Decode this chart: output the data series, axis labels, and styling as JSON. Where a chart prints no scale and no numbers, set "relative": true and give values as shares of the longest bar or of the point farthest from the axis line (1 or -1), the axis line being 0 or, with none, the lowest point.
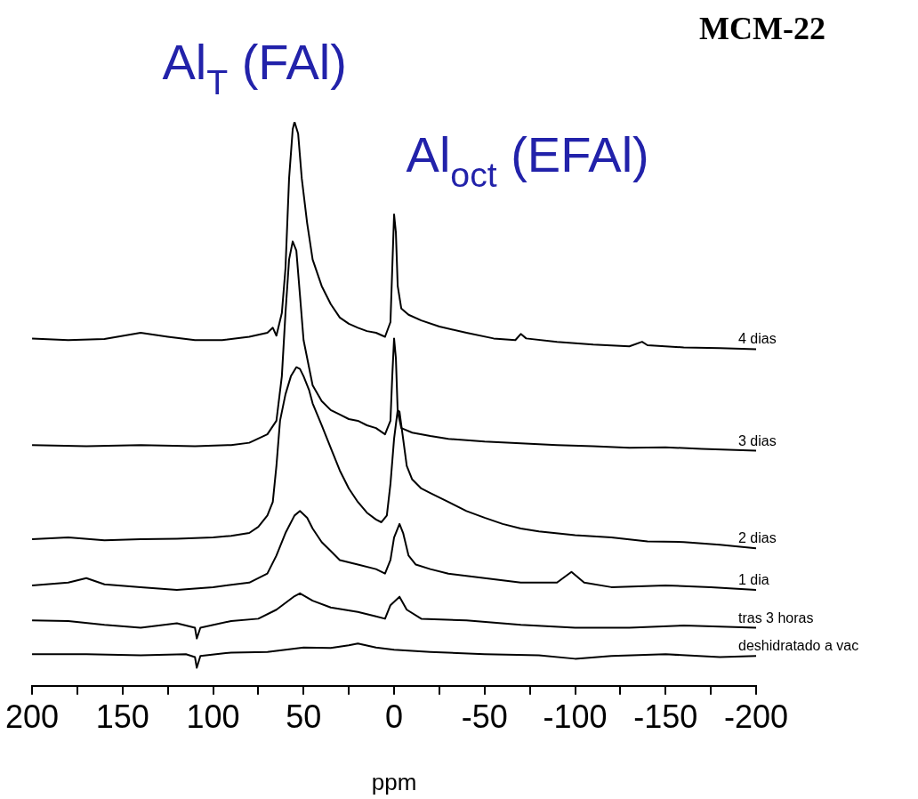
{
  "chart_data": {
    "type": "line",
    "title": "MCM-22",
    "xlabel": "ppm",
    "relative": true,
    "legend": false,
    "grid": false,
    "annotations": [
      {
        "text": "Al$_{T}$ (FAl)",
        "x": 55,
        "y": 1.0
      },
      {
        "text": "Al$_{oct}$ (EFAl)",
        "x": 0,
        "y": 0.836
      }
    ],
    "xlim": [
      200,
      -200
    ],
    "xticks": [
      200,
      {
        "value": 175,
        "label": null
      },
      150,
      {
        "value": 125,
        "label": null
      },
      100,
      {
        "value": 75,
        "label": null
      },
      50,
      {
        "value": 25,
        "label": null
      },
      0,
      {
        "value": -25,
        "label": null
      },
      -50,
      {
        "value": -75,
        "label": null
      },
      -100,
      {
        "value": -125,
        "label": null
      },
      -150,
      {
        "value": -175,
        "label": null
      },
      -200
    ],
    "series": [
      {
        "name": "4 dias",
        "color": "#000000",
        "x": [
          200,
          180,
          160,
          140,
          125,
          110,
          95,
          80,
          70,
          67,
          65,
          62,
          60,
          58,
          56,
          55,
          53,
          51,
          48,
          45,
          40,
          35,
          30,
          25,
          20,
          15,
          10,
          5,
          2,
          1,
          0,
          -1,
          -2,
          -4,
          -8,
          -15,
          -25,
          -40,
          -55,
          -67,
          -70,
          -73,
          -90,
          -110,
          -130,
          -137,
          -140,
          -160,
          -180,
          -200
        ],
        "values": [
          0.616,
          0.613,
          0.615,
          0.626,
          0.619,
          0.613,
          0.613,
          0.619,
          0.626,
          0.635,
          0.621,
          0.661,
          0.74,
          0.9,
          0.987,
          1.0,
          0.979,
          0.9,
          0.82,
          0.756,
          0.709,
          0.677,
          0.653,
          0.642,
          0.635,
          0.629,
          0.626,
          0.619,
          0.645,
          0.74,
          0.836,
          0.804,
          0.709,
          0.669,
          0.658,
          0.648,
          0.637,
          0.626,
          0.616,
          0.613,
          0.624,
          0.616,
          0.61,
          0.605,
          0.602,
          0.61,
          0.604,
          0.6,
          0.599,
          0.597
        ]
      },
      {
        "name": "3 dias",
        "color": "#000000",
        "x": [
          200,
          170,
          140,
          110,
          90,
          80,
          70,
          65,
          62,
          60,
          58,
          56,
          54,
          52,
          50,
          47,
          45,
          40,
          35,
          30,
          25,
          20,
          15,
          10,
          5,
          2,
          1,
          0,
          -1,
          -2,
          -4,
          -10,
          -20,
          -30,
          -50,
          -70,
          -90,
          -110,
          -130,
          -150,
          -170,
          -200
        ],
        "values": [
          0.427,
          0.425,
          0.427,
          0.425,
          0.427,
          0.431,
          0.446,
          0.47,
          0.549,
          0.661,
          0.756,
          0.788,
          0.772,
          0.693,
          0.613,
          0.565,
          0.533,
          0.505,
          0.489,
          0.481,
          0.473,
          0.47,
          0.462,
          0.457,
          0.446,
          0.47,
          0.549,
          0.616,
          0.581,
          0.486,
          0.457,
          0.449,
          0.443,
          0.438,
          0.433,
          0.43,
          0.427,
          0.425,
          0.422,
          0.423,
          0.42,
          0.417
        ]
      },
      {
        "name": "2 dias",
        "color": "#000000",
        "x": [
          200,
          180,
          160,
          140,
          120,
          100,
          90,
          80,
          75,
          70,
          67,
          65,
          63,
          60,
          57,
          54,
          52,
          50,
          47,
          45,
          40,
          35,
          30,
          25,
          20,
          15,
          10,
          7,
          4,
          2,
          0,
          -2,
          -3,
          -5,
          -7,
          -10,
          -15,
          -20,
          -30,
          -40,
          -50,
          -60,
          -70,
          -80,
          -100,
          -120,
          -140,
          -160,
          -180,
          -200
        ],
        "values": [
          0.26,
          0.263,
          0.258,
          0.26,
          0.261,
          0.263,
          0.266,
          0.271,
          0.282,
          0.302,
          0.326,
          0.39,
          0.47,
          0.517,
          0.549,
          0.565,
          0.562,
          0.549,
          0.525,
          0.501,
          0.462,
          0.422,
          0.382,
          0.35,
          0.326,
          0.307,
          0.295,
          0.29,
          0.302,
          0.358,
          0.438,
          0.489,
          0.486,
          0.438,
          0.39,
          0.366,
          0.35,
          0.342,
          0.326,
          0.31,
          0.298,
          0.287,
          0.279,
          0.274,
          0.267,
          0.263,
          0.256,
          0.255,
          0.25,
          0.244
        ]
      },
      {
        "name": "1 dia",
        "color": "#000000",
        "x": [
          200,
          180,
          170,
          160,
          140,
          120,
          100,
          80,
          70,
          65,
          60,
          55,
          52,
          48,
          45,
          40,
          35,
          30,
          20,
          10,
          5,
          2,
          0,
          -3,
          -5,
          -8,
          -12,
          -20,
          -30,
          -50,
          -70,
          -90,
          -98,
          -105,
          -120,
          -150,
          -175,
          -200
        ],
        "values": [
          0.178,
          0.183,
          0.191,
          0.18,
          0.175,
          0.17,
          0.175,
          0.183,
          0.199,
          0.231,
          0.271,
          0.302,
          0.31,
          0.298,
          0.279,
          0.255,
          0.239,
          0.223,
          0.215,
          0.207,
          0.199,
          0.223,
          0.263,
          0.287,
          0.271,
          0.231,
          0.215,
          0.207,
          0.199,
          0.191,
          0.183,
          0.183,
          0.202,
          0.183,
          0.175,
          0.178,
          0.175,
          0.17
        ]
      },
      {
        "name": "tras 3 horas",
        "color": "#000000",
        "x": [
          200,
          180,
          160,
          140,
          120,
          110,
          109,
          107,
          90,
          75,
          65,
          55,
          52,
          45,
          35,
          20,
          10,
          5,
          2,
          -3,
          -7,
          -15,
          -40,
          -70,
          -100,
          -130,
          -160,
          -200
        ],
        "values": [
          0.116,
          0.115,
          0.108,
          0.103,
          0.111,
          0.103,
          0.084,
          0.103,
          0.115,
          0.119,
          0.135,
          0.159,
          0.164,
          0.151,
          0.139,
          0.131,
          0.123,
          0.119,
          0.143,
          0.158,
          0.135,
          0.119,
          0.116,
          0.108,
          0.103,
          0.103,
          0.107,
          0.103
        ]
      },
      {
        "name": "deshidratado a vac",
        "color": "#000000",
        "x": [
          200,
          170,
          140,
          115,
          110,
          109,
          107,
          90,
          70,
          50,
          35,
          25,
          20,
          10,
          0,
          -20,
          -50,
          -80,
          -100,
          -120,
          -150,
          -180,
          -200
        ],
        "values": [
          0.056,
          0.056,
          0.054,
          0.056,
          0.051,
          0.032,
          0.053,
          0.059,
          0.06,
          0.068,
          0.067,
          0.072,
          0.075,
          0.068,
          0.064,
          0.06,
          0.056,
          0.054,
          0.048,
          0.053,
          0.056,
          0.051,
          0.053
        ]
      }
    ]
  }
}
